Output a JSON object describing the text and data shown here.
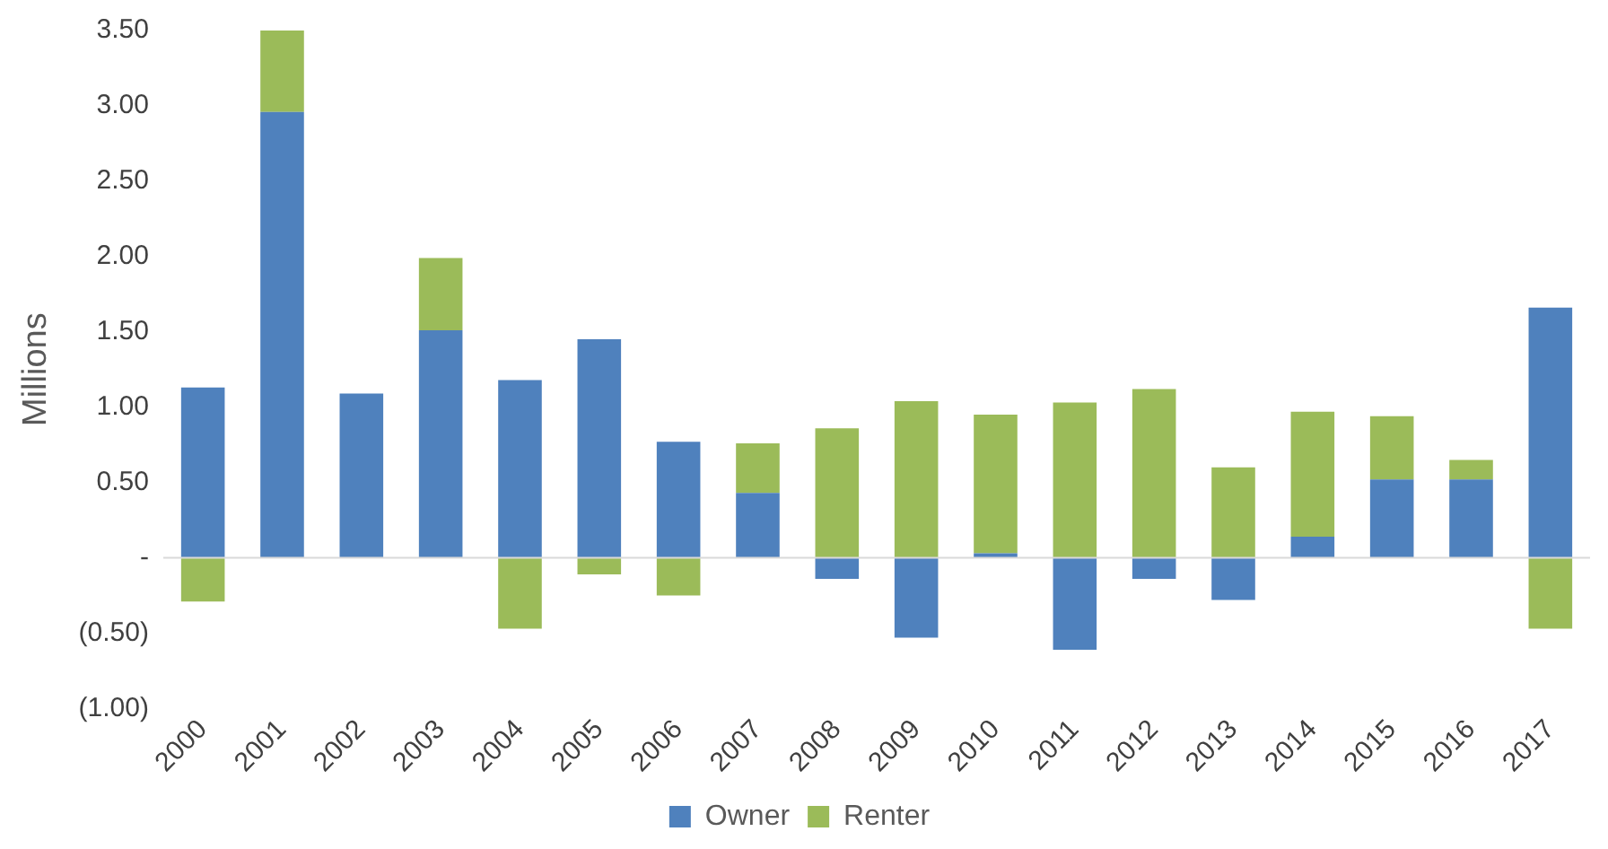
{
  "chart_data": {
    "type": "bar",
    "stacked": true,
    "ylabel": "Millions",
    "categories": [
      "2000",
      "2001",
      "2002",
      "2003",
      "2004",
      "2005",
      "2006",
      "2007",
      "2008",
      "2009",
      "2010",
      "2011",
      "2012",
      "2013",
      "2014",
      "2015",
      "2016",
      "2017"
    ],
    "series": [
      {
        "name": "Owner",
        "color": "#4f81bd",
        "values": [
          1.13,
          2.96,
          1.09,
          1.51,
          1.18,
          1.45,
          0.77,
          0.43,
          -0.14,
          -0.53,
          0.03,
          -0.61,
          -0.14,
          -0.28,
          0.14,
          0.52,
          0.52,
          1.66
        ]
      },
      {
        "name": "Renter",
        "color": "#9bbb59",
        "values": [
          -0.29,
          0.54,
          0,
          0.48,
          -0.47,
          -0.11,
          -0.25,
          0.33,
          0.86,
          1.04,
          0.92,
          1.03,
          1.12,
          0.6,
          0.83,
          0.42,
          0.13,
          -0.47
        ]
      }
    ],
    "ylim": [
      -1,
      3.5
    ],
    "yticks": [
      {
        "value": -1,
        "label": "(1.00)"
      },
      {
        "value": -0.5,
        "label": "(0.50)"
      },
      {
        "value": 0,
        "label": "-"
      },
      {
        "value": 0.5,
        "label": "0.50"
      },
      {
        "value": 1,
        "label": "1.00"
      },
      {
        "value": 1.5,
        "label": "1.50"
      },
      {
        "value": 2,
        "label": "2.00"
      },
      {
        "value": 2.5,
        "label": "2.50"
      },
      {
        "value": 3,
        "label": "3.00"
      },
      {
        "value": 3.5,
        "label": "3.50"
      }
    ],
    "ref_lines": [
      {
        "axis": "y",
        "value": 0,
        "color": "#d9d9d9"
      }
    ],
    "grid": false,
    "legend": "bottom"
  }
}
